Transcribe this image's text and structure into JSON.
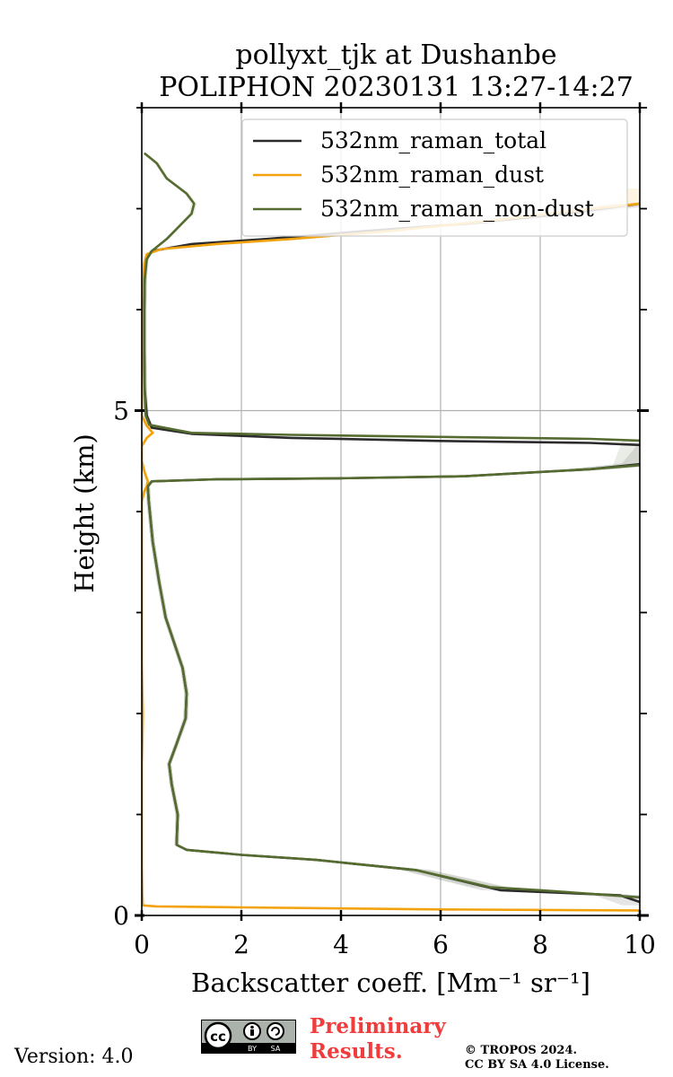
{
  "chart_data": {
    "type": "line",
    "title": [
      "pollyxt_tjk at Dushanbe",
      "POLIPHON 20230131 13:27-14:27"
    ],
    "xlabel": "Backscatter coeff. [Mm⁻¹ sr⁻¹]",
    "ylabel": "Height (km)",
    "xlim": [
      0,
      10
    ],
    "ylim": [
      0,
      8
    ],
    "x_ticks": [
      0,
      2,
      4,
      6,
      8,
      10
    ],
    "x_tick_labels": [
      "0",
      "2",
      "4",
      "6",
      "8",
      "10"
    ],
    "y_ticks": [
      0,
      5
    ],
    "y_tick_labels": [
      "0",
      "5"
    ],
    "y_minor_ticks": [
      1,
      2,
      3,
      4,
      6,
      7
    ],
    "x_grid": true,
    "y_grid_at": [
      5
    ],
    "legend_position": "top-right",
    "series": [
      {
        "name": "532nm_raman_total",
        "color": "#2b2b2b",
        "points": [
          [
            10.2,
            0.1
          ],
          [
            9.6,
            0.2
          ],
          [
            7.2,
            0.25
          ],
          [
            5.5,
            0.45
          ],
          [
            3.5,
            0.55
          ],
          [
            2.0,
            0.6
          ],
          [
            0.9,
            0.65
          ],
          [
            0.7,
            0.7
          ],
          [
            0.72,
            1.0
          ],
          [
            0.6,
            1.3
          ],
          [
            0.55,
            1.5
          ],
          [
            0.7,
            1.7
          ],
          [
            0.88,
            1.95
          ],
          [
            0.9,
            2.2
          ],
          [
            0.82,
            2.45
          ],
          [
            0.65,
            2.7
          ],
          [
            0.48,
            2.95
          ],
          [
            0.35,
            3.3
          ],
          [
            0.22,
            3.7
          ],
          [
            0.14,
            4.1
          ],
          [
            0.12,
            4.25
          ],
          [
            0.2,
            4.3
          ],
          [
            1.5,
            4.32
          ],
          [
            4.0,
            4.33
          ],
          [
            6.5,
            4.35
          ],
          [
            9.0,
            4.42
          ],
          [
            10.2,
            4.48
          ],
          [
            10.5,
            4.65
          ],
          [
            9.0,
            4.68
          ],
          [
            6.0,
            4.7
          ],
          [
            3.0,
            4.73
          ],
          [
            1.0,
            4.77
          ],
          [
            0.2,
            4.83
          ],
          [
            0.1,
            4.95
          ],
          [
            0.06,
            5.2
          ],
          [
            0.05,
            5.6
          ],
          [
            0.05,
            6.0
          ],
          [
            0.06,
            6.3
          ],
          [
            0.08,
            6.5
          ],
          [
            0.2,
            6.58
          ],
          [
            1.0,
            6.65
          ],
          [
            2.5,
            6.7
          ],
          [
            4.5,
            6.78
          ],
          [
            6.5,
            6.85
          ],
          [
            8.5,
            6.95
          ],
          [
            10.0,
            7.05
          ]
        ]
      },
      {
        "name": "532nm_raman_dust",
        "color": "#f2a20c",
        "points": [
          [
            10.0,
            0.05
          ],
          [
            6.0,
            0.06
          ],
          [
            2.0,
            0.08
          ],
          [
            0.3,
            0.09
          ],
          [
            0.02,
            0.1
          ],
          [
            0.01,
            0.2
          ],
          [
            0.0,
            0.5
          ],
          [
            0.0,
            1.5
          ],
          [
            0.01,
            1.7
          ],
          [
            0.02,
            2.0
          ],
          [
            0.0,
            2.5
          ],
          [
            0.0,
            4.1
          ],
          [
            0.05,
            4.2
          ],
          [
            0.1,
            4.25
          ],
          [
            0.12,
            4.3
          ],
          [
            0.05,
            4.4
          ],
          [
            0.0,
            4.5
          ],
          [
            0.0,
            4.65
          ],
          [
            0.1,
            4.73
          ],
          [
            0.22,
            4.78
          ],
          [
            0.1,
            4.85
          ],
          [
            0.0,
            4.95
          ],
          [
            0.0,
            6.0
          ],
          [
            0.05,
            6.45
          ],
          [
            0.1,
            6.55
          ],
          [
            0.4,
            6.6
          ],
          [
            1.5,
            6.65
          ],
          [
            3.0,
            6.7
          ],
          [
            5.0,
            6.78
          ],
          [
            7.0,
            6.88
          ],
          [
            8.5,
            6.97
          ],
          [
            10.0,
            7.05
          ],
          [
            10.3,
            7.2
          ]
        ]
      },
      {
        "name": "532nm_raman_non-dust",
        "color": "#556b2f",
        "points": [
          [
            10.0,
            0.18
          ],
          [
            8.0,
            0.25
          ],
          [
            7.0,
            0.28
          ],
          [
            5.5,
            0.45
          ],
          [
            3.5,
            0.55
          ],
          [
            2.0,
            0.6
          ],
          [
            0.9,
            0.65
          ],
          [
            0.7,
            0.7
          ],
          [
            0.72,
            1.0
          ],
          [
            0.6,
            1.3
          ],
          [
            0.55,
            1.5
          ],
          [
            0.7,
            1.7
          ],
          [
            0.88,
            1.95
          ],
          [
            0.9,
            2.2
          ],
          [
            0.82,
            2.45
          ],
          [
            0.65,
            2.7
          ],
          [
            0.48,
            2.95
          ],
          [
            0.35,
            3.3
          ],
          [
            0.22,
            3.7
          ],
          [
            0.14,
            4.1
          ],
          [
            0.12,
            4.25
          ],
          [
            0.2,
            4.3
          ],
          [
            1.5,
            4.32
          ],
          [
            4.0,
            4.33
          ],
          [
            6.5,
            4.35
          ],
          [
            9.0,
            4.42
          ],
          [
            10.0,
            4.46
          ],
          [
            10.2,
            4.7
          ],
          [
            9.0,
            4.72
          ],
          [
            6.0,
            4.74
          ],
          [
            3.0,
            4.76
          ],
          [
            1.0,
            4.78
          ],
          [
            0.15,
            4.86
          ],
          [
            0.08,
            4.95
          ],
          [
            0.06,
            5.2
          ],
          [
            0.05,
            5.6
          ],
          [
            0.05,
            6.0
          ],
          [
            0.06,
            6.3
          ],
          [
            0.1,
            6.5
          ],
          [
            0.2,
            6.58
          ],
          [
            0.5,
            6.7
          ],
          [
            0.8,
            6.85
          ],
          [
            1.0,
            6.95
          ],
          [
            1.05,
            7.05
          ],
          [
            0.9,
            7.15
          ],
          [
            0.5,
            7.3
          ],
          [
            0.3,
            7.45
          ],
          [
            0.05,
            7.55
          ]
        ]
      }
    ]
  },
  "footer": {
    "version": "Version: 4.0",
    "preliminary": [
      "Preliminary",
      "Results."
    ],
    "copyright": [
      "© TROPOS 2024.",
      "CC BY SA 4.0 License."
    ],
    "license_badge_text": [
      "cc",
      "BY",
      "SA"
    ]
  }
}
